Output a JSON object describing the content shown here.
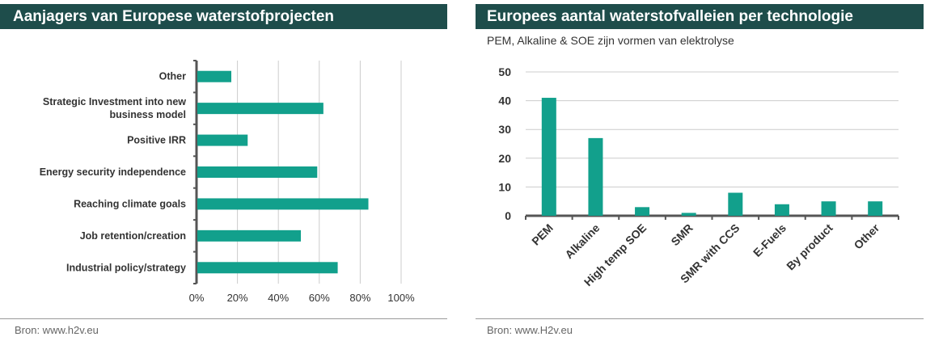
{
  "colors": {
    "bar": "#12a08c",
    "title_bg": "#1e4d4b",
    "grid": "#cccccc",
    "axis": "#555555"
  },
  "chart_data": [
    {
      "type": "bar",
      "orientation": "horizontal",
      "title": "Aanjagers van Europese waterstofprojecten",
      "source": "Bron: www.h2v.eu",
      "categories": [
        "Other",
        "Strategic Investment into new business model",
        "Positive IRR",
        "Energy security independence",
        "Reaching climate goals",
        "Job retention/creation",
        "Industrial policy/strategy"
      ],
      "category_lines": [
        [
          "Other"
        ],
        [
          "Strategic Investment into new",
          "business model"
        ],
        [
          "Positive IRR"
        ],
        [
          "Energy security independence"
        ],
        [
          "Reaching climate goals"
        ],
        [
          "Job retention/creation"
        ],
        [
          "Industrial policy/strategy"
        ]
      ],
      "values": [
        17,
        62,
        25,
        59,
        84,
        51,
        69
      ],
      "xlim": [
        0,
        100
      ],
      "xticks": [
        0,
        20,
        40,
        60,
        80,
        100
      ],
      "xtick_labels": [
        "0%",
        "20%",
        "40%",
        "60%",
        "80%",
        "100%"
      ],
      "grid": true
    },
    {
      "type": "bar",
      "orientation": "vertical",
      "title": "Europees aantal waterstofvalleien per technologie",
      "subtitle": "PEM, Alkaline & SOE zijn vormen van elektrolyse",
      "source": "Bron: www.H2v.eu",
      "categories": [
        "PEM",
        "Alkaline",
        "High temp SOE",
        "SMR",
        "SMR with CCS",
        "E-Fuels",
        "By product",
        "Other"
      ],
      "values": [
        41,
        27,
        3,
        1,
        8,
        4,
        5,
        5
      ],
      "ylim": [
        0,
        50
      ],
      "yticks": [
        0,
        10,
        20,
        30,
        40,
        50
      ],
      "grid": true
    }
  ]
}
